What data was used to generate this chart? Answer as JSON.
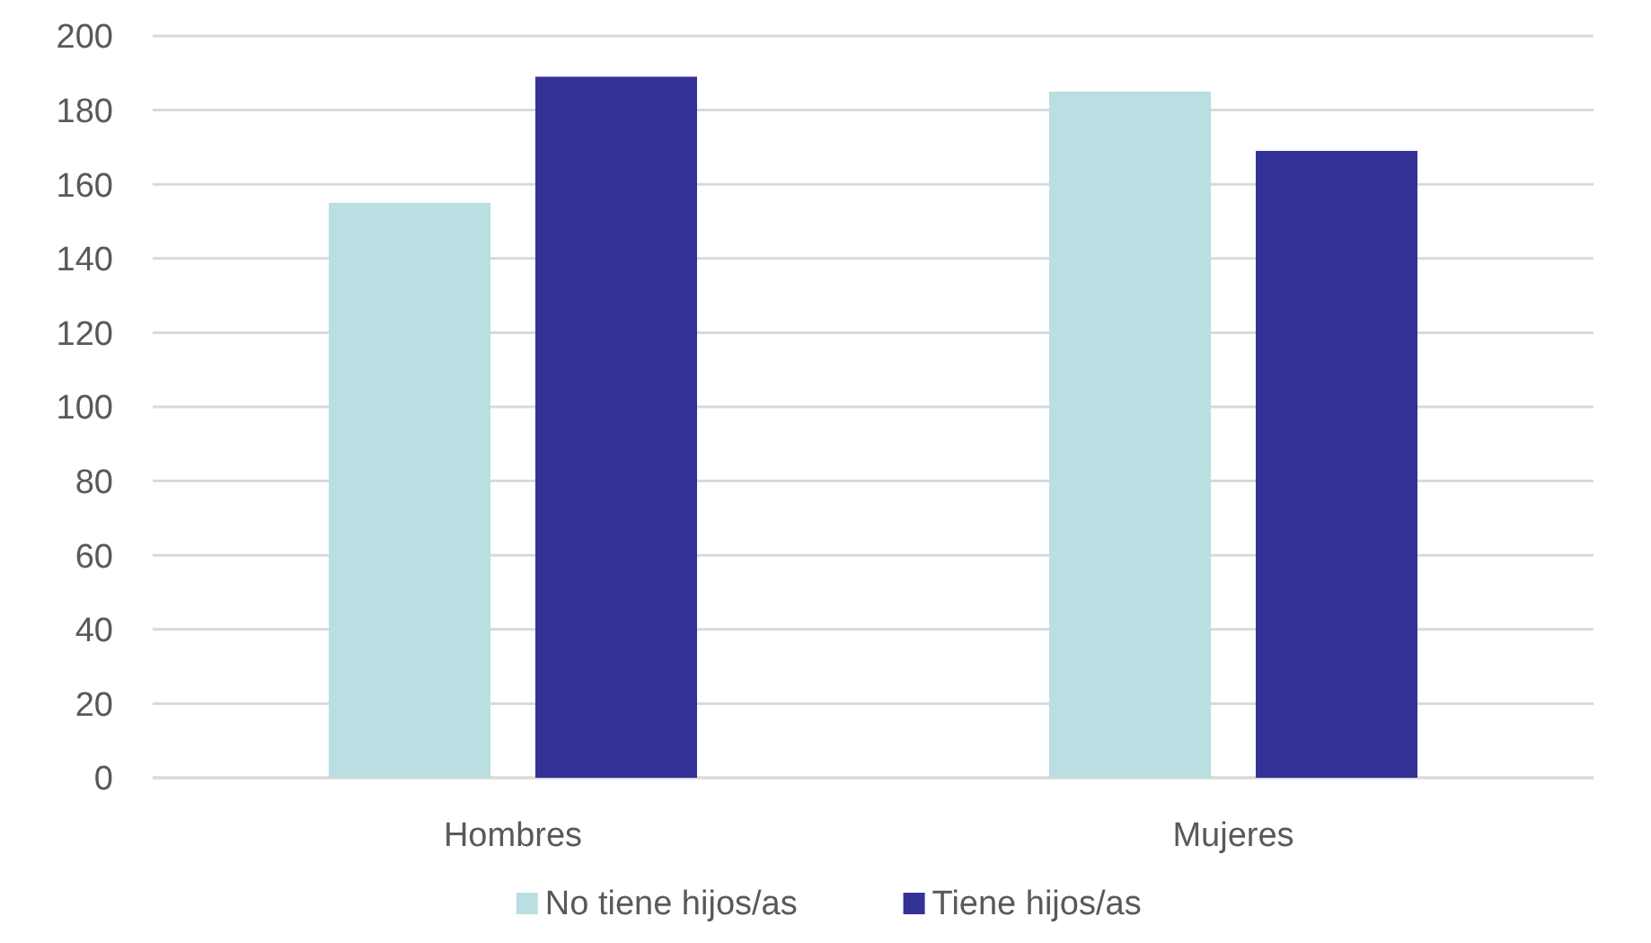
{
  "chart_data": {
    "type": "bar",
    "categories": [
      "Hombres",
      "Mujeres"
    ],
    "series": [
      {
        "name": "No tiene hijos/as",
        "color": "#b9dfe2",
        "values": [
          155,
          185
        ]
      },
      {
        "name": "Tiene hijos/as",
        "color": "#343296",
        "values": [
          189,
          169
        ]
      }
    ],
    "ylim": [
      0,
      200
    ],
    "yticks": [
      0,
      20,
      40,
      60,
      80,
      100,
      120,
      140,
      160,
      180,
      200
    ],
    "grid": "y",
    "legend": "bottom"
  }
}
